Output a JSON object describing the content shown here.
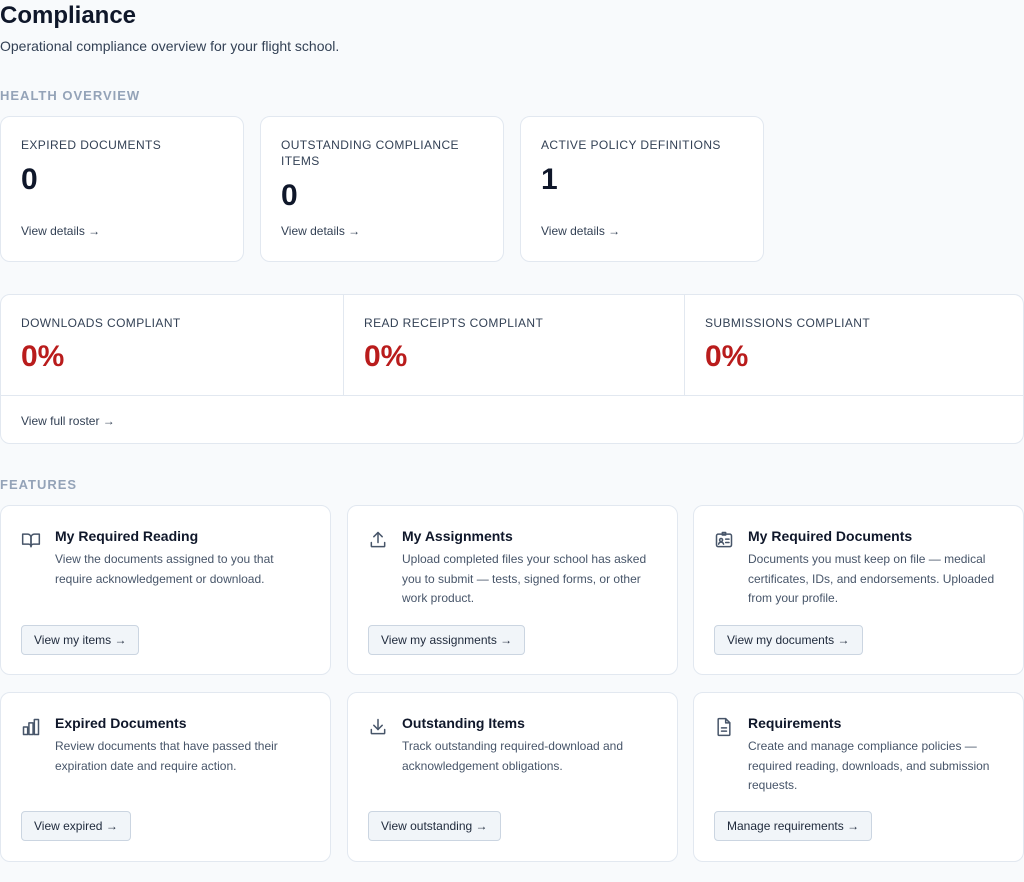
{
  "header": {
    "title": "Compliance",
    "subtitle": "Operational compliance overview for your flight school."
  },
  "health_overview": {
    "section_label": "HEALTH OVERVIEW",
    "cards": [
      {
        "label": "EXPIRED DOCUMENTS",
        "value": "0",
        "link": "View details →"
      },
      {
        "label": "OUTSTANDING COMPLIANCE ITEMS",
        "value": "0",
        "link": "View details →"
      },
      {
        "label": "ACTIVE POLICY DEFINITIONS",
        "value": "1",
        "link": "View details →"
      }
    ],
    "roster": {
      "metrics": [
        {
          "label": "DOWNLOADS COMPLIANT",
          "value": "0%"
        },
        {
          "label": "READ RECEIPTS COMPLIANT",
          "value": "0%"
        },
        {
          "label": "SUBMISSIONS COMPLIANT",
          "value": "0%"
        }
      ],
      "link": "View full roster →",
      "value_color": "#b91c1c"
    }
  },
  "features": {
    "section_label": "FEATURES",
    "items": [
      {
        "icon": "book-open-icon",
        "title": "My Required Reading",
        "description": "View the documents assigned to you that require acknowledgement or download.",
        "button": "View my items →"
      },
      {
        "icon": "upload-icon",
        "title": "My Assignments",
        "description": "Upload completed files your school has asked you to submit — tests, signed forms, or other work product.",
        "button": "View my assignments →"
      },
      {
        "icon": "id-card-icon",
        "title": "My Required Documents",
        "description": "Documents you must keep on file — medical certificates, IDs, and endorsements. Uploaded from your profile.",
        "button": "View my documents →"
      },
      {
        "icon": "bar-chart-icon",
        "title": "Expired Documents",
        "description": "Review documents that have passed their expiration date and require action.",
        "button": "View expired →"
      },
      {
        "icon": "download-icon",
        "title": "Outstanding Items",
        "description": "Track outstanding required-download and acknowledgement obligations.",
        "button": "View outstanding →"
      },
      {
        "icon": "file-text-icon",
        "title": "Requirements",
        "description": "Create and manage compliance policies — required reading, downloads, and submission requests.",
        "button": "Manage requirements →"
      }
    ]
  }
}
